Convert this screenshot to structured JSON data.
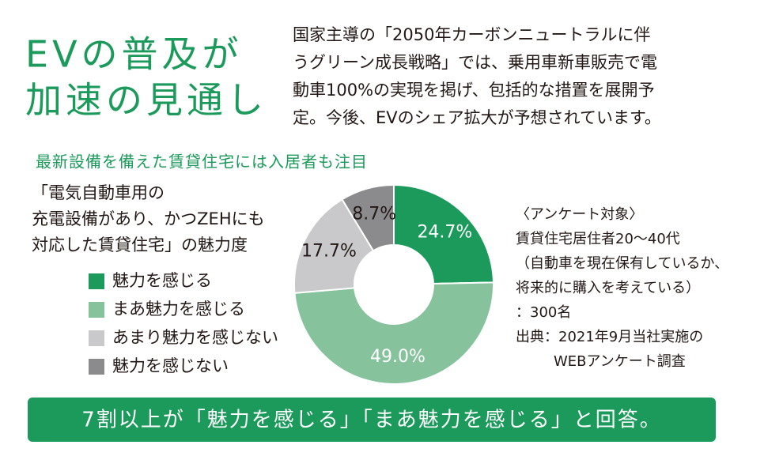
{
  "header": {
    "title": [
      "EVの普及が",
      "加速の見通し"
    ],
    "body": [
      "国家主導の「2050年カーボンニュートラルに伴",
      "うグリーン成長戦略」では、乗用車新車販売で電",
      "動車100%の実現を掲げ、包括的な措置を展開予",
      "定。今後、EVのシェア拡大が予想されています。"
    ]
  },
  "chart_data": {
    "type": "donut",
    "title": "最新設備を備えた賃貸住宅には入居者も注目",
    "subtitle": [
      "「電気自動車用の",
      "充電設備があり、かつZEHにも",
      "対応した賃貸住宅」の魅力度"
    ],
    "categories": [
      "魅力を感じる",
      "まあ魅力を感じる",
      "あまり魅力を感じない",
      "魅力を感じない"
    ],
    "values": [
      24.7,
      49.0,
      17.7,
      8.7
    ],
    "value_labels": [
      "24.7%",
      "49.0%",
      "17.7%",
      "8.7%"
    ],
    "colors": [
      "#1b9a5b",
      "#86c29c",
      "#c9c9cb",
      "#8b8b8d"
    ]
  },
  "notes": [
    "〈アンケート対象〉",
    "賃貸住宅居住者20～40代",
    "（自動車を現在保有しているか、",
    "将来的に購入を考えている）",
    "：300名",
    "出典：2021年9月当社実施の",
    "WEBアンケート調査"
  ],
  "footer": "7割以上が「魅力を感じる」「まあ魅力を感じる」と回答。"
}
